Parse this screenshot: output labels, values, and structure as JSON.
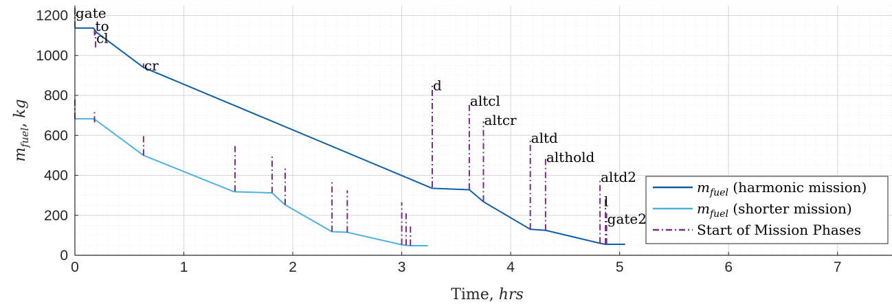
{
  "chart_data": {
    "type": "line",
    "title": "",
    "xlabel": "Time, ",
    "xlabel_unit": "hrs",
    "ylabel_symbol": "m",
    "ylabel_sub": "fuel",
    "ylabel_rest": ", ",
    "ylabel_unit": "kg",
    "xlim": [
      0,
      7.5
    ],
    "ylim": [
      0,
      1250
    ],
    "xticks": [
      "0",
      "1",
      "2",
      "3",
      "4",
      "5",
      "6",
      "7"
    ],
    "yticks": [
      "0",
      "200",
      "400",
      "600",
      "800",
      "1000",
      "1200"
    ],
    "grid": true,
    "minor_grid": true,
    "legend_position": "bottom-right",
    "colors": {
      "harmonic": "#0b5ea8",
      "shorter": "#4cb1e0",
      "phases": "#7b2a83",
      "grid": "#d6d6d6",
      "axis": "#262626"
    },
    "series": [
      {
        "key": "harmonic",
        "legend_symbol": "m",
        "legend_sub": "fuel",
        "legend_rest": " (harmonic mission)",
        "x": [
          0,
          0.17,
          0.2,
          0.63,
          3.28,
          3.62,
          3.75,
          4.18,
          4.32,
          4.82,
          4.87,
          5.05
        ],
        "y": [
          1137,
          1137,
          1115,
          940,
          335,
          328,
          268,
          130,
          125,
          60,
          55,
          55
        ]
      },
      {
        "key": "shorter",
        "legend_symbol": "m",
        "legend_sub": "fuel",
        "legend_rest": " (shorter mission)",
        "x": [
          0,
          0.17,
          0.2,
          0.63,
          1.46,
          1.81,
          1.93,
          2.36,
          2.5,
          3.0,
          3.04,
          3.07,
          3.24
        ],
        "y": [
          683,
          683,
          673,
          500,
          318,
          312,
          252,
          118,
          115,
          53,
          50,
          48,
          48
        ]
      }
    ],
    "phases_legend": "Start of Mission Phases",
    "phase_markers_harmonic": [
      {
        "x": 0.0,
        "y0": 1140,
        "y1": 1240,
        "label": "gate"
      },
      {
        "x": 0.18,
        "y0": 1100,
        "y1": 1140,
        "label": "to"
      },
      {
        "x": 0.19,
        "y0": 1040,
        "y1": 1115,
        "label": "cl"
      },
      {
        "x": 0.63,
        "y0": 940,
        "y1": 960,
        "label": "cr"
      },
      {
        "x": 3.28,
        "y0": 340,
        "y1": 860,
        "label": "d"
      },
      {
        "x": 3.62,
        "y0": 330,
        "y1": 765,
        "label": "altcl"
      },
      {
        "x": 3.75,
        "y0": 270,
        "y1": 670,
        "label": "altcr"
      },
      {
        "x": 4.18,
        "y0": 130,
        "y1": 580,
        "label": "altd"
      },
      {
        "x": 4.32,
        "y0": 125,
        "y1": 485,
        "label": "althold"
      },
      {
        "x": 4.82,
        "y0": 60,
        "y1": 385,
        "label": "altd2"
      },
      {
        "x": 4.87,
        "y0": 55,
        "y1": 280,
        "label": "l"
      },
      {
        "x": 4.88,
        "y0": 55,
        "y1": 210,
        "label": "gate2"
      }
    ],
    "phase_markers_shorter": [
      {
        "x": 0.0,
        "y0": 683,
        "y1": 790
      },
      {
        "x": 0.18,
        "y0": 665,
        "y1": 720
      },
      {
        "x": 0.63,
        "y0": 500,
        "y1": 610
      },
      {
        "x": 1.47,
        "y0": 320,
        "y1": 555
      },
      {
        "x": 1.81,
        "y0": 312,
        "y1": 495
      },
      {
        "x": 1.93,
        "y0": 252,
        "y1": 440
      },
      {
        "x": 2.36,
        "y0": 118,
        "y1": 380
      },
      {
        "x": 2.5,
        "y0": 115,
        "y1": 325
      },
      {
        "x": 3.0,
        "y0": 53,
        "y1": 265
      },
      {
        "x": 3.04,
        "y0": 50,
        "y1": 210
      },
      {
        "x": 3.08,
        "y0": 48,
        "y1": 155
      }
    ]
  }
}
